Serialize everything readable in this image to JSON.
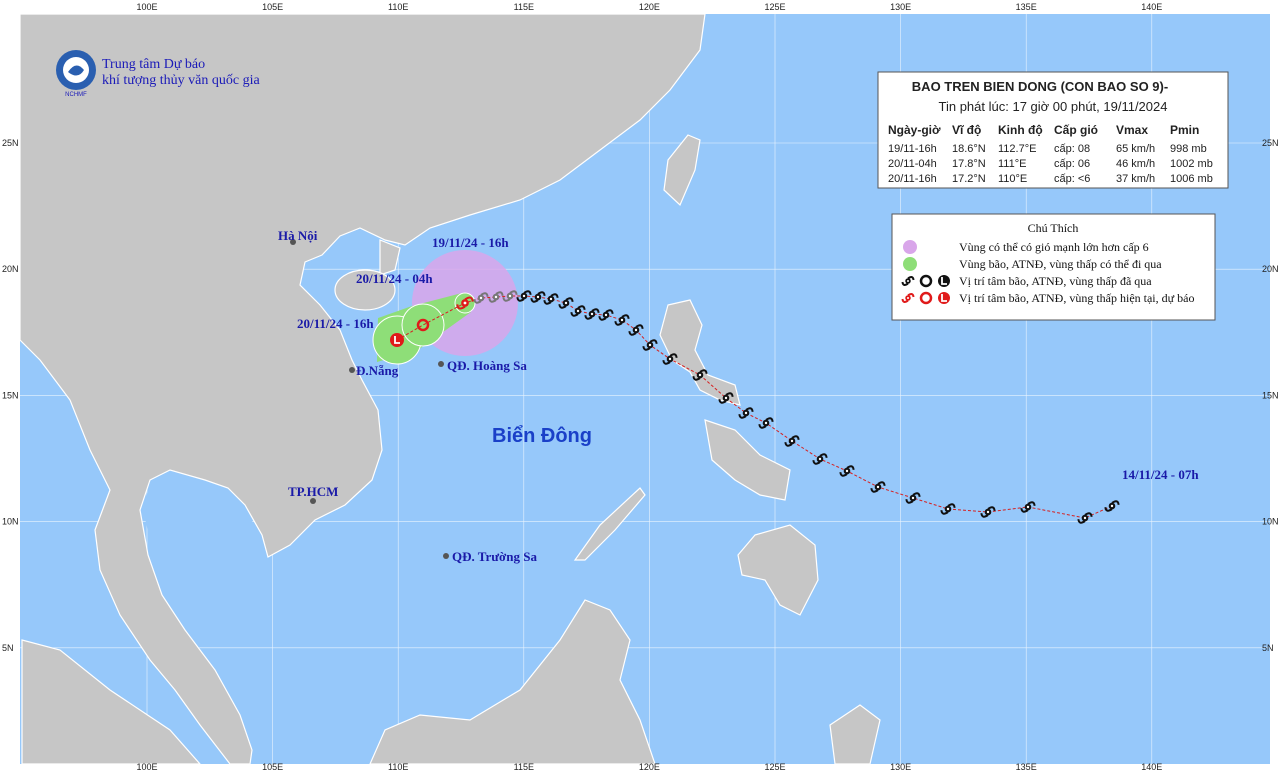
{
  "map": {
    "lon_labels": [
      "100E",
      "105E",
      "110E",
      "115E",
      "120E",
      "125E",
      "130E",
      "135E",
      "140E"
    ],
    "lat_labels": [
      "25N",
      "20N",
      "15N",
      "10N",
      "5N"
    ]
  },
  "logo": {
    "line1": "Trung tâm Dự báo",
    "line2": "khí tượng thủy văn quốc gia",
    "abbr": "NCHMF"
  },
  "places": [
    "Hà Nội",
    "Đ.Nẵng",
    "QĐ. Hoàng Sa",
    "TP.HCM",
    "QĐ. Trường Sa"
  ],
  "sea_label": "Biển Đông",
  "track_labels": [
    "19/11/24 - 16h",
    "20/11/24 - 04h",
    "20/11/24 - 16h",
    "14/11/24 - 07h"
  ],
  "bulletin": {
    "title": "BAO TREN BIEN DONG (CON BAO SO 9)-",
    "issued": "Tin phát lúc: 17 giờ 00 phút, 19/11/2024",
    "columns": [
      "Ngày-giờ",
      "Vĩ độ",
      "Kinh độ",
      "Cấp gió",
      "Vmax",
      "Pmin"
    ],
    "rows": [
      [
        "19/11-16h",
        "18.6°N",
        "112.7°E",
        "cấp: 08",
        "65 km/h",
        "998 mb"
      ],
      [
        "20/11-04h",
        "17.8°N",
        "111°E",
        "cấp: 06",
        "46 km/h",
        "1002 mb"
      ],
      [
        "20/11-16h",
        "17.2°N",
        "110°E",
        "cấp: <6",
        "37 km/h",
        "1006 mb"
      ]
    ]
  },
  "legend": {
    "title": "Chú Thích",
    "items": [
      "Vùng có thể có gió mạnh lớn hơn cấp 6",
      "Vùng bão, ATNĐ, vùng thấp có thể đi qua",
      "Vị trí tâm bão, ATNĐ, vùng thấp đã qua",
      "Vị trí tâm bão, ATNĐ, vùng thấp hiện tại, dự báo"
    ]
  }
}
